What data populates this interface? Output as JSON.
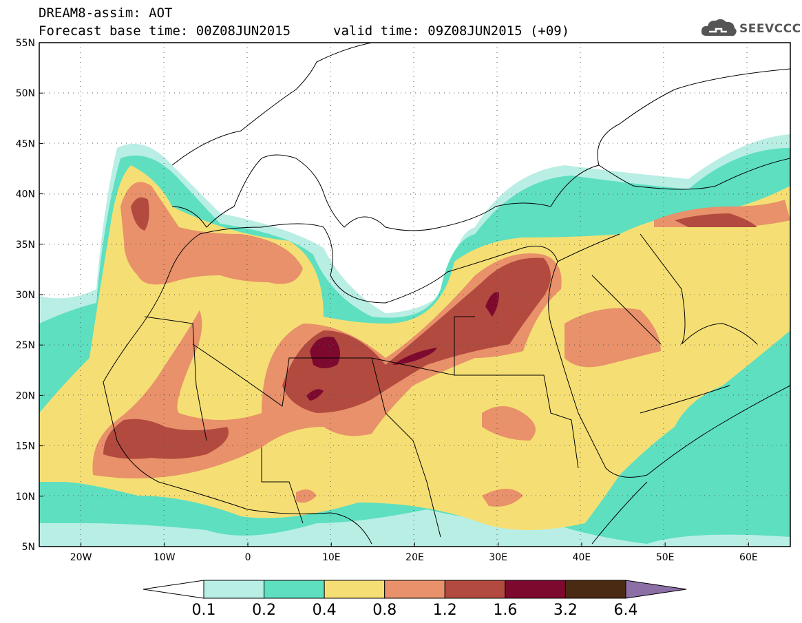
{
  "header": {
    "line1": "DREAM8-assim: AOT",
    "line2": "Forecast base time: 00Z08JUN2015",
    "valid": "valid time: 09Z08JUN2015 (+09)"
  },
  "logo": {
    "text": "SEEVCCC",
    "icon": "cloud-icon"
  },
  "map": {
    "projection": "lat-lon",
    "lon_range": [
      -25,
      65
    ],
    "lat_range": [
      5,
      55
    ],
    "lat_ticks": [
      {
        "value": 55,
        "label": "55N"
      },
      {
        "value": 50,
        "label": "50N"
      },
      {
        "value": 45,
        "label": "45N"
      },
      {
        "value": 40,
        "label": "40N"
      },
      {
        "value": 35,
        "label": "35N"
      },
      {
        "value": 30,
        "label": "30N"
      },
      {
        "value": 25,
        "label": "25N"
      },
      {
        "value": 20,
        "label": "20N"
      },
      {
        "value": 15,
        "label": "15N"
      },
      {
        "value": 10,
        "label": "10N"
      },
      {
        "value": 5,
        "label": "5N"
      }
    ],
    "lon_ticks": [
      {
        "value": -20,
        "label": "20W"
      },
      {
        "value": -10,
        "label": "10W"
      },
      {
        "value": 0,
        "label": "0"
      },
      {
        "value": 10,
        "label": "10E"
      },
      {
        "value": 20,
        "label": "20E"
      },
      {
        "value": 30,
        "label": "30E"
      },
      {
        "value": 40,
        "label": "40E"
      },
      {
        "value": 50,
        "label": "50E"
      },
      {
        "value": 60,
        "label": "60E"
      }
    ],
    "colorbar": {
      "levels": [
        "0.1",
        "0.2",
        "0.4",
        "0.8",
        "1.2",
        "1.6",
        "3.2",
        "6.4"
      ],
      "colors": [
        "#ffffff",
        "#b9eee5",
        "#5ddfc0",
        "#f5df74",
        "#e8916a",
        "#b24a3f",
        "#7d0a2e",
        "#4a2a12",
        "#8b6fa5"
      ]
    }
  }
}
